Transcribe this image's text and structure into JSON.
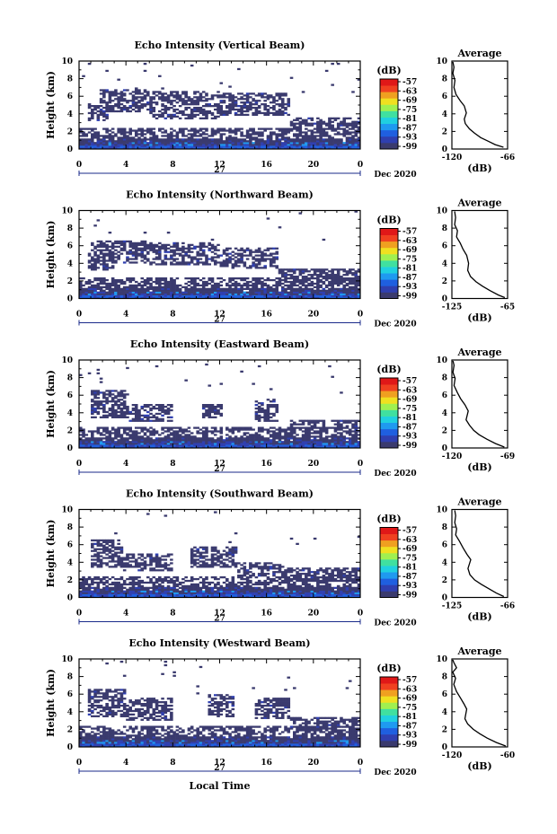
{
  "colorbar": {
    "unit": "(dB)",
    "ticks": [
      "-57",
      "-63",
      "-69",
      "-75",
      "-81",
      "-87",
      "-93",
      "-99"
    ],
    "colors": [
      "#3a3a6e",
      "#2f3fb0",
      "#1f5fe0",
      "#1f9af0",
      "#20d0e0",
      "#40e0a0",
      "#a0f050",
      "#f0e020",
      "#f0a020",
      "#f04020",
      "#e01818"
    ]
  },
  "date_label": "Dec 2020",
  "day_label": "27",
  "x_axis_label": "Local Time",
  "avg_label": "Average",
  "avg_unit": "(dB)",
  "ylabel": "Height (km)",
  "chart_data": [
    {
      "type": "heatmap",
      "title": "Echo Intensity (Vertical Beam)",
      "xlabel": "Local Time",
      "ylabel": "Height (km)",
      "x_ticks": [
        "0",
        "4",
        "8",
        "12",
        "16",
        "20",
        "0"
      ],
      "y_ticks": [
        "0",
        "2",
        "4",
        "6",
        "8",
        "10"
      ],
      "xlim": [
        0,
        24
      ],
      "ylim": [
        0,
        10
      ],
      "upper_cloud": [
        [
          0.8,
          2.6,
          3.2,
          5.2
        ],
        [
          1.8,
          6.0,
          4.2,
          6.8
        ],
        [
          6.0,
          12.0,
          3.5,
          6.5
        ],
        [
          12.0,
          18.0,
          3.8,
          6.3
        ],
        [
          18.0,
          24.0,
          2.3,
          3.6
        ]
      ],
      "average_profile": {
        "xlabel": "(dB)",
        "xlim": [
          -120,
          -66
        ],
        "x_ticks": [
          "-120",
          "-66"
        ],
        "y_ticks": [
          "0",
          "2",
          "4",
          "6",
          "8",
          "10"
        ],
        "points": [
          [
            -70,
            0.2
          ],
          [
            -78,
            0.5
          ],
          [
            -85,
            0.9
          ],
          [
            -92,
            1.3
          ],
          [
            -98,
            1.8
          ],
          [
            -103,
            2.3
          ],
          [
            -107,
            2.9
          ],
          [
            -108,
            3.4
          ],
          [
            -106,
            4.1
          ],
          [
            -108,
            4.9
          ],
          [
            -112,
            5.5
          ],
          [
            -116,
            6.2
          ],
          [
            -118,
            7.0
          ],
          [
            -117,
            7.8
          ],
          [
            -119,
            8.6
          ],
          [
            -118,
            9.3
          ],
          [
            -119,
            9.9
          ]
        ]
      }
    },
    {
      "type": "heatmap",
      "title": "Echo Intensity (Northward Beam)",
      "xlabel": "Local Time",
      "ylabel": "Height (km)",
      "x_ticks": [
        "0",
        "4",
        "8",
        "12",
        "16",
        "20",
        "0"
      ],
      "y_ticks": [
        "0",
        "2",
        "4",
        "6",
        "8",
        "10"
      ],
      "xlim": [
        0,
        24
      ],
      "ylim": [
        0,
        10
      ],
      "upper_cloud": [
        [
          0.8,
          3.0,
          3.2,
          5.2
        ],
        [
          1.0,
          6.0,
          4.0,
          6.5
        ],
        [
          6.0,
          12.0,
          3.8,
          6.4
        ],
        [
          12.0,
          17.0,
          3.5,
          5.7
        ],
        [
          17.0,
          24.0,
          1.8,
          3.5
        ]
      ],
      "average_profile": {
        "xlabel": "(dB)",
        "xlim": [
          -125,
          -65
        ],
        "x_ticks": [
          "-125",
          "-65"
        ],
        "y_ticks": [
          "0",
          "2",
          "4",
          "6",
          "8",
          "10"
        ],
        "points": [
          [
            -68,
            0.1
          ],
          [
            -75,
            0.4
          ],
          [
            -84,
            0.9
          ],
          [
            -92,
            1.4
          ],
          [
            -99,
            1.9
          ],
          [
            -105,
            2.5
          ],
          [
            -108,
            3.2
          ],
          [
            -107,
            4.0
          ],
          [
            -109,
            4.9
          ],
          [
            -113,
            5.6
          ],
          [
            -116,
            6.3
          ],
          [
            -120,
            7.0
          ],
          [
            -119,
            7.7
          ],
          [
            -122,
            8.4
          ],
          [
            -121,
            9.2
          ],
          [
            -122,
            9.9
          ]
        ]
      }
    },
    {
      "type": "heatmap",
      "title": "Echo Intensity (Eastward Beam)",
      "xlabel": "Local Time",
      "ylabel": "Height (km)",
      "x_ticks": [
        "0",
        "4",
        "8",
        "12",
        "16",
        "20",
        "0"
      ],
      "y_ticks": [
        "0",
        "2",
        "4",
        "6",
        "8",
        "10"
      ],
      "xlim": [
        0,
        24
      ],
      "ylim": [
        0,
        10
      ],
      "upper_cloud": [
        [
          1.0,
          4.0,
          3.5,
          6.5
        ],
        [
          4.0,
          8.0,
          3.0,
          5.0
        ],
        [
          10.5,
          12.2,
          3.5,
          5.0
        ],
        [
          15.0,
          17.0,
          3.0,
          5.5
        ],
        [
          18.0,
          24.0,
          2.0,
          3.2
        ]
      ],
      "average_profile": {
        "xlabel": "(dB)",
        "xlim": [
          -120,
          -69
        ],
        "x_ticks": [
          "-120",
          "-69"
        ],
        "y_ticks": [
          "0",
          "2",
          "4",
          "6",
          "8",
          "10"
        ],
        "points": [
          [
            -72,
            0.1
          ],
          [
            -80,
            0.5
          ],
          [
            -88,
            1.0
          ],
          [
            -95,
            1.5
          ],
          [
            -100,
            2.0
          ],
          [
            -104,
            2.6
          ],
          [
            -107,
            3.2
          ],
          [
            -105,
            4.2
          ],
          [
            -108,
            4.9
          ],
          [
            -112,
            5.6
          ],
          [
            -115,
            6.3
          ],
          [
            -118,
            7.1
          ],
          [
            -117,
            7.9
          ],
          [
            -119,
            8.6
          ],
          [
            -118,
            9.4
          ],
          [
            -119,
            9.9
          ]
        ]
      }
    },
    {
      "type": "heatmap",
      "title": "Echo Intensity (Southward Beam)",
      "xlabel": "Local Time",
      "ylabel": "Height (km)",
      "x_ticks": [
        "0",
        "4",
        "8",
        "12",
        "16",
        "20",
        "0"
      ],
      "y_ticks": [
        "0",
        "2",
        "4",
        "6",
        "8",
        "10"
      ],
      "xlim": [
        0,
        24
      ],
      "ylim": [
        0,
        10
      ],
      "upper_cloud": [
        [
          1.0,
          3.8,
          3.5,
          6.5
        ],
        [
          3.8,
          8.0,
          3.0,
          5.0
        ],
        [
          9.5,
          13.5,
          3.5,
          5.8
        ],
        [
          13.5,
          17.5,
          2.5,
          4.0
        ],
        [
          17.5,
          24.0,
          1.8,
          3.5
        ]
      ],
      "average_profile": {
        "xlabel": "(dB)",
        "xlim": [
          -125,
          -66
        ],
        "x_ticks": [
          "-125",
          "-66"
        ],
        "y_ticks": [
          "0",
          "2",
          "4",
          "6",
          "8",
          "10"
        ],
        "points": [
          [
            -70,
            0.1
          ],
          [
            -78,
            0.5
          ],
          [
            -86,
            1.0
          ],
          [
            -94,
            1.5
          ],
          [
            -101,
            2.0
          ],
          [
            -106,
            2.6
          ],
          [
            -108,
            3.3
          ],
          [
            -105,
            4.3
          ],
          [
            -109,
            4.9
          ],
          [
            -113,
            5.6
          ],
          [
            -117,
            6.4
          ],
          [
            -121,
            7.1
          ],
          [
            -120,
            7.8
          ],
          [
            -122,
            8.5
          ],
          [
            -121,
            9.3
          ],
          [
            -122,
            9.9
          ]
        ]
      }
    },
    {
      "type": "heatmap",
      "title": "Echo Intensity (Westward Beam)",
      "xlabel": "Local Time",
      "ylabel": "Height (km)",
      "x_ticks": [
        "0",
        "4",
        "8",
        "12",
        "16",
        "20",
        "0"
      ],
      "y_ticks": [
        "0",
        "2",
        "4",
        "6",
        "8",
        "10"
      ],
      "xlim": [
        0,
        24
      ],
      "ylim": [
        0,
        10
      ],
      "upper_cloud": [
        [
          0.8,
          4.0,
          3.5,
          6.5
        ],
        [
          4.0,
          8.0,
          3.0,
          5.5
        ],
        [
          11.0,
          13.2,
          3.5,
          6.0
        ],
        [
          15.0,
          18.0,
          3.2,
          5.5
        ],
        [
          18.0,
          24.0,
          1.8,
          3.5
        ]
      ],
      "average_profile": {
        "xlabel": "(dB)",
        "xlim": [
          -120,
          -60
        ],
        "x_ticks": [
          "-120",
          "-60"
        ],
        "y_ticks": [
          "0",
          "2",
          "4",
          "6",
          "8",
          "10"
        ],
        "points": [
          [
            -62,
            0.1
          ],
          [
            -72,
            0.5
          ],
          [
            -82,
            1.0
          ],
          [
            -90,
            1.5
          ],
          [
            -97,
            2.0
          ],
          [
            -103,
            2.6
          ],
          [
            -106,
            3.2
          ],
          [
            -104,
            4.3
          ],
          [
            -107,
            4.9
          ],
          [
            -111,
            5.6
          ],
          [
            -115,
            6.3
          ],
          [
            -118,
            7.1
          ],
          [
            -116,
            7.8
          ],
          [
            -119,
            8.5
          ],
          [
            -115,
            9.0
          ],
          [
            -118,
            9.6
          ],
          [
            -119,
            9.9
          ]
        ]
      }
    }
  ]
}
